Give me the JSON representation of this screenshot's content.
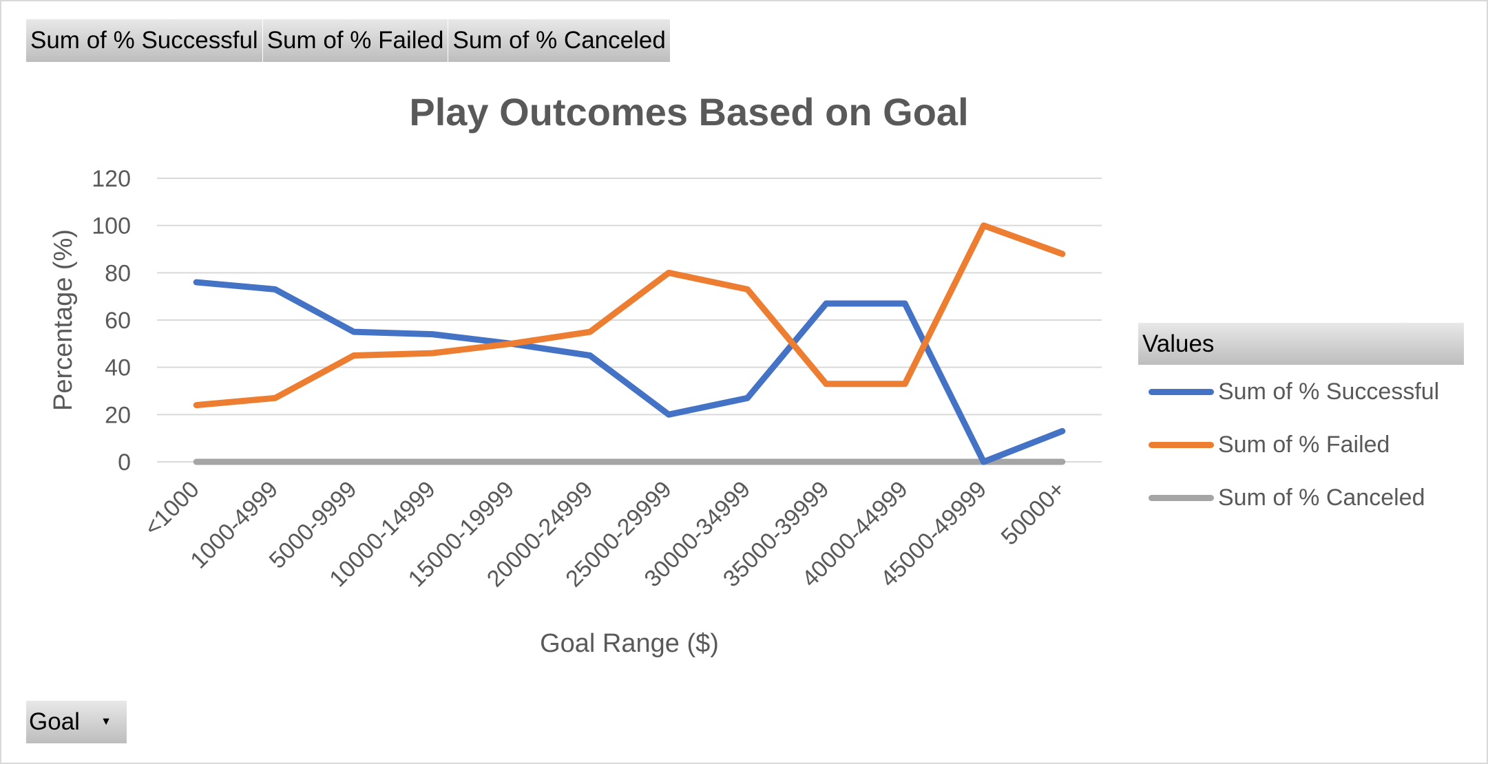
{
  "field_buttons": {
    "successful": "Sum of % Successful",
    "failed": "Sum of % Failed",
    "canceled": "Sum of % Canceled"
  },
  "axis_filter": {
    "label": "Goal"
  },
  "legend": {
    "header": "Values"
  },
  "colors": {
    "successful": "#4472c4",
    "failed": "#ed7d31",
    "canceled": "#a5a5a5",
    "text": "#595959",
    "grid": "#d9d9d9"
  },
  "chart_data": {
    "type": "line",
    "title": "Play Outcomes Based on Goal",
    "xlabel": "Goal Range ($)",
    "ylabel": "Percentage (%)",
    "ylim": [
      0,
      120
    ],
    "yticks": [
      0,
      20,
      40,
      60,
      80,
      100,
      120
    ],
    "grid": true,
    "legend_position": "right",
    "categories": [
      "<1000",
      "1000-4999",
      "5000-9999",
      "10000-14999",
      "15000-19999",
      "20000-24999",
      "25000-29999",
      "30000-34999",
      "35000-39999",
      "40000-44999",
      "45000-49999",
      "50000+"
    ],
    "series": [
      {
        "name": "Sum of % Successful",
        "color": "#4472c4",
        "values": [
          76,
          73,
          55,
          54,
          50,
          45,
          20,
          27,
          67,
          67,
          0,
          13
        ]
      },
      {
        "name": "Sum of % Failed",
        "color": "#ed7d31",
        "values": [
          24,
          27,
          45,
          46,
          50,
          55,
          80,
          73,
          33,
          33,
          100,
          88
        ]
      },
      {
        "name": "Sum of % Canceled",
        "color": "#a5a5a5",
        "values": [
          0,
          0,
          0,
          0,
          0,
          0,
          0,
          0,
          0,
          0,
          0,
          0
        ]
      }
    ]
  }
}
